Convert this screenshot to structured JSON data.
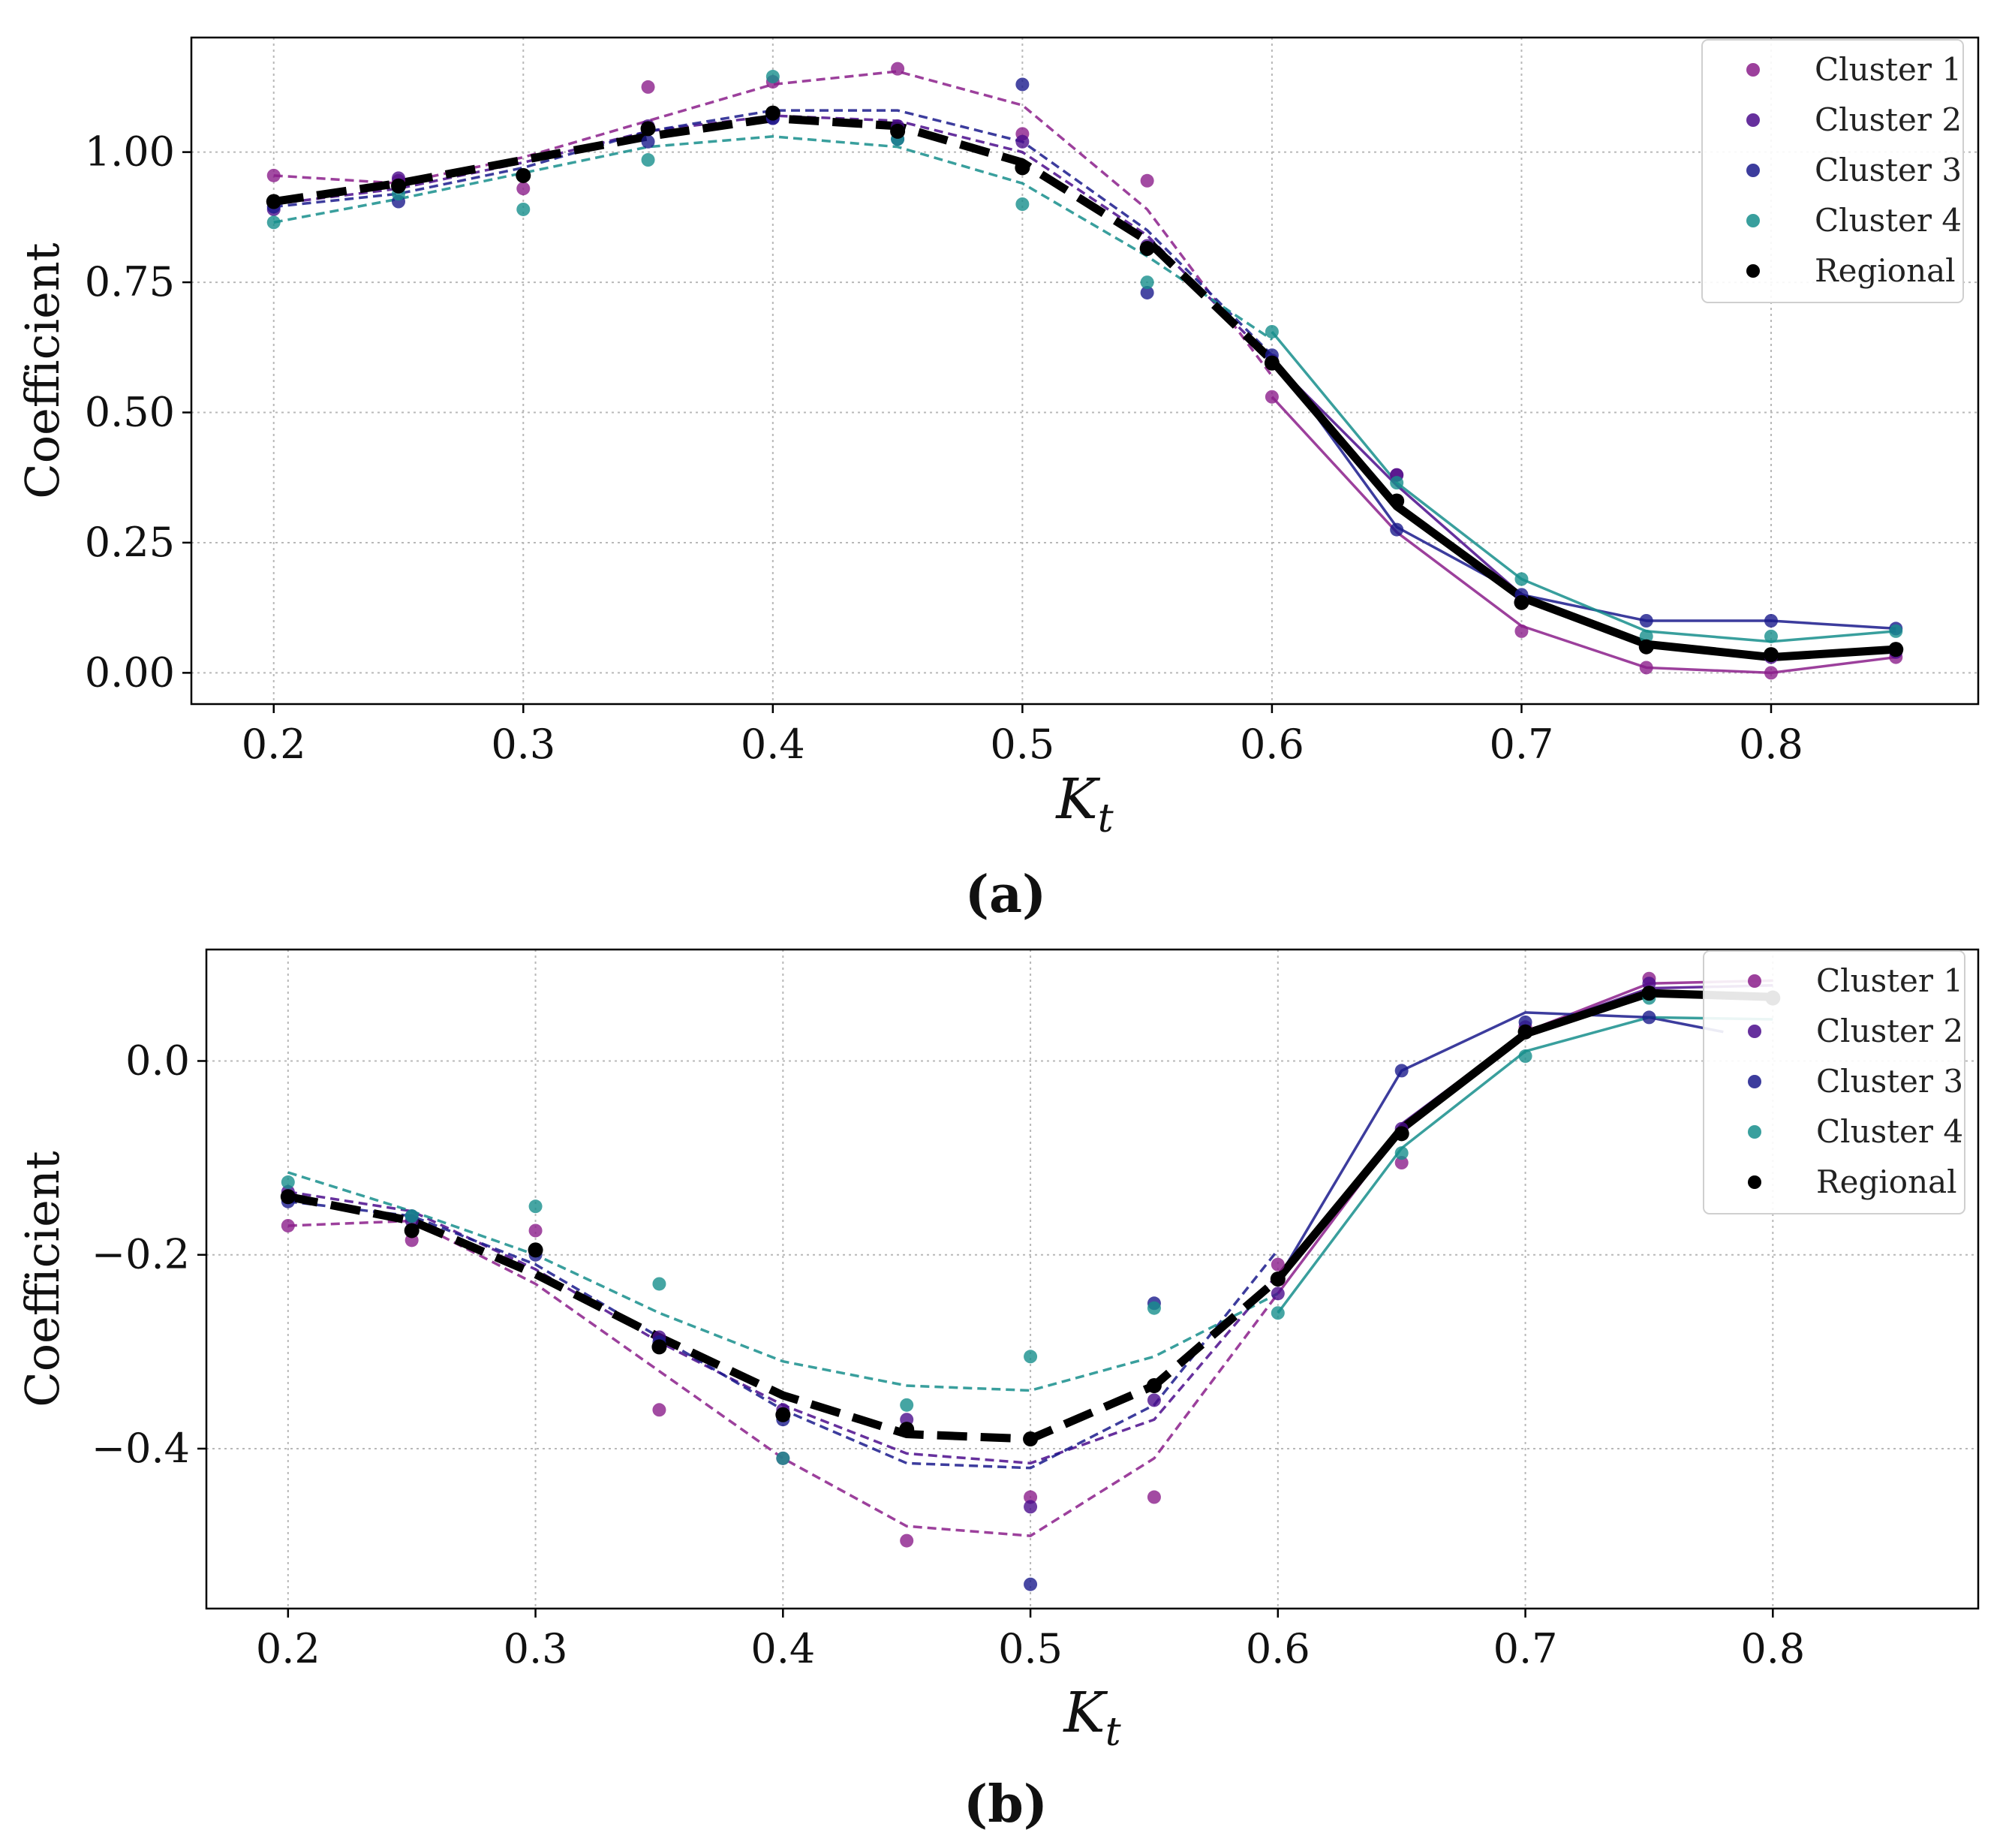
{
  "chart_data": [
    {
      "type": "line",
      "panel_label": "(a)",
      "title": "",
      "xlabel": "K",
      "xlabel_sub": "t",
      "ylabel": "Coefficient",
      "xlim": [
        0.167,
        0.883
      ],
      "ylim": [
        -0.06,
        1.22
      ],
      "xticks": [
        0.2,
        0.3,
        0.4,
        0.5,
        0.6,
        0.7,
        0.8
      ],
      "xtick_labels": [
        "0.2",
        "0.3",
        "0.4",
        "0.5",
        "0.6",
        "0.7",
        "0.8"
      ],
      "yticks": [
        0.0,
        0.25,
        0.5,
        0.75,
        1.0
      ],
      "ytick_labels": [
        "0.00",
        "0.25",
        "0.50",
        "0.75",
        "1.00"
      ],
      "grid": true,
      "legend_position": "top-right",
      "series": [
        {
          "name": "Cluster 1",
          "color": "#8B1E8B",
          "x": [
            0.2,
            0.25,
            0.3,
            0.35,
            0.4,
            0.45,
            0.5,
            0.55,
            0.6,
            0.65,
            0.7,
            0.75,
            0.8,
            0.85
          ],
          "points": [
            0.955,
            0.945,
            0.93,
            1.125,
            1.135,
            1.16,
            1.035,
            0.945,
            0.53,
            0.38,
            0.08,
            0.01,
            0.0,
            0.03
          ],
          "dashed_fit": {
            "x": [
              0.2,
              0.25,
              0.3,
              0.35,
              0.4,
              0.45,
              0.5,
              0.55,
              0.6
            ],
            "y": [
              0.955,
              0.94,
              0.99,
              1.06,
              1.13,
              1.155,
              1.09,
              0.89,
              0.57
            ]
          },
          "solid_fit": {
            "x": [
              0.6,
              0.65,
              0.7,
              0.75,
              0.8,
              0.85
            ],
            "y": [
              0.53,
              0.27,
              0.09,
              0.01,
              0.0,
              0.03
            ]
          }
        },
        {
          "name": "Cluster 2",
          "color": "#4B0C8C",
          "x": [
            0.2,
            0.25,
            0.3,
            0.35,
            0.4,
            0.45,
            0.5,
            0.55,
            0.6,
            0.65,
            0.7,
            0.75,
            0.8,
            0.85
          ],
          "points": [
            0.89,
            0.95,
            0.955,
            1.05,
            1.065,
            1.05,
            1.02,
            0.82,
            0.6,
            0.38,
            0.14,
            0.05,
            0.03,
            0.04
          ],
          "dashed_fit": {
            "x": [
              0.2,
              0.25,
              0.3,
              0.35,
              0.4,
              0.45,
              0.5,
              0.55,
              0.6
            ],
            "y": [
              0.9,
              0.93,
              0.98,
              1.04,
              1.07,
              1.06,
              1.0,
              0.84,
              0.6
            ]
          },
          "solid_fit": {
            "x": [
              0.6,
              0.65,
              0.7,
              0.75,
              0.8,
              0.85
            ],
            "y": [
              0.6,
              0.36,
              0.15,
              0.05,
              0.03,
              0.04
            ]
          }
        },
        {
          "name": "Cluster 3",
          "color": "#1A1A8C",
          "x": [
            0.2,
            0.25,
            0.3,
            0.35,
            0.4,
            0.45,
            0.5,
            0.55,
            0.6,
            0.65,
            0.7,
            0.75,
            0.8,
            0.85
          ],
          "points": [
            0.895,
            0.905,
            0.955,
            1.02,
            1.065,
            1.025,
            1.13,
            0.73,
            0.61,
            0.275,
            0.15,
            0.1,
            0.1,
            0.085
          ],
          "dashed_fit": {
            "x": [
              0.2,
              0.25,
              0.3,
              0.35,
              0.4,
              0.45,
              0.5,
              0.55,
              0.6
            ],
            "y": [
              0.895,
              0.92,
              0.97,
              1.04,
              1.08,
              1.08,
              1.02,
              0.85,
              0.61
            ]
          },
          "solid_fit": {
            "x": [
              0.6,
              0.65,
              0.7,
              0.75,
              0.8,
              0.85
            ],
            "y": [
              0.61,
              0.28,
              0.15,
              0.1,
              0.1,
              0.085
            ]
          }
        },
        {
          "name": "Cluster 4",
          "color": "#168E8C",
          "x": [
            0.2,
            0.25,
            0.3,
            0.35,
            0.4,
            0.45,
            0.5,
            0.55,
            0.6,
            0.65,
            0.7,
            0.75,
            0.8,
            0.85
          ],
          "points": [
            0.865,
            0.92,
            0.89,
            0.985,
            1.145,
            1.025,
            0.9,
            0.75,
            0.655,
            0.365,
            0.18,
            0.07,
            0.07,
            0.08
          ],
          "dashed_fit": {
            "x": [
              0.2,
              0.25,
              0.3,
              0.35,
              0.4,
              0.45,
              0.5,
              0.55,
              0.6
            ],
            "y": [
              0.865,
              0.91,
              0.96,
              1.01,
              1.03,
              1.01,
              0.94,
              0.8,
              0.64
            ]
          },
          "solid_fit": {
            "x": [
              0.6,
              0.65,
              0.7,
              0.75,
              0.8,
              0.85
            ],
            "y": [
              0.655,
              0.365,
              0.18,
              0.08,
              0.06,
              0.08
            ]
          }
        },
        {
          "name": "Regional",
          "color": "#000000",
          "x": [
            0.2,
            0.25,
            0.3,
            0.35,
            0.4,
            0.45,
            0.5,
            0.55,
            0.6,
            0.65,
            0.7,
            0.75,
            0.8,
            0.85
          ],
          "points": [
            0.905,
            0.935,
            0.955,
            1.045,
            1.075,
            1.04,
            0.97,
            0.815,
            0.595,
            0.33,
            0.135,
            0.05,
            0.035,
            0.045
          ],
          "dashed_fit": {
            "x": [
              0.2,
              0.25,
              0.3,
              0.35,
              0.4,
              0.45,
              0.5,
              0.55,
              0.6
            ],
            "y": [
              0.905,
              0.94,
              0.985,
              1.03,
              1.065,
              1.05,
              0.98,
              0.83,
              0.6
            ]
          },
          "solid_fit": {
            "x": [
              0.6,
              0.65,
              0.7,
              0.75,
              0.8,
              0.85
            ],
            "y": [
              0.6,
              0.32,
              0.145,
              0.055,
              0.03,
              0.045
            ]
          }
        }
      ]
    },
    {
      "type": "line",
      "panel_label": "(b)",
      "title": "",
      "xlabel": "K",
      "xlabel_sub": "t",
      "ylabel": "Coefficient",
      "xlim": [
        0.167,
        0.883
      ],
      "ylim": [
        -0.565,
        0.115
      ],
      "xticks": [
        0.2,
        0.3,
        0.4,
        0.5,
        0.6,
        0.7,
        0.8
      ],
      "xtick_labels": [
        "0.2",
        "0.3",
        "0.4",
        "0.5",
        "0.6",
        "0.7",
        "0.8"
      ],
      "yticks": [
        -0.4,
        -0.2,
        0.0
      ],
      "ytick_labels": [
        "−0.4",
        "−0.2",
        "0.0"
      ],
      "grid": true,
      "legend_position": "top-right",
      "series": [
        {
          "name": "Cluster 1",
          "color": "#8B1E8B",
          "x": [
            0.2,
            0.25,
            0.3,
            0.35,
            0.4,
            0.45,
            0.5,
            0.55,
            0.6,
            0.65,
            0.7,
            0.75
          ],
          "points": [
            -0.17,
            -0.185,
            -0.175,
            -0.36,
            -0.41,
            -0.495,
            -0.45,
            -0.45,
            -0.21,
            -0.105,
            0.035,
            0.085
          ],
          "dashed_fit": {
            "x": [
              0.2,
              0.25,
              0.3,
              0.35,
              0.4,
              0.45,
              0.5,
              0.55,
              0.6
            ],
            "y": [
              -0.17,
              -0.165,
              -0.23,
              -0.32,
              -0.41,
              -0.48,
              -0.49,
              -0.41,
              -0.24
            ]
          },
          "solid_fit": {
            "x": [
              0.6,
              0.65,
              0.7,
              0.75,
              0.8
            ],
            "y": [
              -0.24,
              -0.07,
              0.03,
              0.08,
              0.083
            ]
          }
        },
        {
          "name": "Cluster 2",
          "color": "#4B0C8C",
          "x": [
            0.2,
            0.25,
            0.3,
            0.35,
            0.4,
            0.45,
            0.5,
            0.55,
            0.6,
            0.65,
            0.7,
            0.75
          ],
          "points": [
            -0.135,
            -0.165,
            -0.195,
            -0.285,
            -0.36,
            -0.37,
            -0.46,
            -0.35,
            -0.24,
            -0.07,
            0.03,
            0.08
          ],
          "dashed_fit": {
            "x": [
              0.2,
              0.25,
              0.3,
              0.35,
              0.4,
              0.45,
              0.5,
              0.55,
              0.6
            ],
            "y": [
              -0.135,
              -0.155,
              -0.215,
              -0.29,
              -0.355,
              -0.405,
              -0.415,
              -0.37,
              -0.22
            ]
          },
          "solid_fit": {
            "x": [
              0.6,
              0.65,
              0.7,
              0.75,
              0.8
            ],
            "y": [
              -0.23,
              -0.065,
              0.03,
              0.075,
              0.078
            ]
          }
        },
        {
          "name": "Cluster 3",
          "color": "#1A1A8C",
          "x": [
            0.2,
            0.25,
            0.3,
            0.35,
            0.4,
            0.45,
            0.5,
            0.55,
            0.6,
            0.65,
            0.7,
            0.75
          ],
          "points": [
            -0.145,
            -0.16,
            -0.2,
            -0.29,
            -0.37,
            -0.38,
            -0.54,
            -0.25,
            -0.225,
            -0.01,
            0.04,
            0.045
          ],
          "dashed_fit": {
            "x": [
              0.2,
              0.25,
              0.3,
              0.35,
              0.4,
              0.45,
              0.5,
              0.55,
              0.6
            ],
            "y": [
              -0.145,
              -0.16,
              -0.21,
              -0.285,
              -0.36,
              -0.415,
              -0.42,
              -0.355,
              -0.195
            ]
          },
          "solid_fit": {
            "x": [
              0.6,
              0.65,
              0.7,
              0.75,
              0.78
            ],
            "y": [
              -0.225,
              -0.01,
              0.05,
              0.045,
              0.03
            ]
          }
        },
        {
          "name": "Cluster 4",
          "color": "#168E8C",
          "x": [
            0.2,
            0.25,
            0.3,
            0.35,
            0.4,
            0.45,
            0.5,
            0.55,
            0.6,
            0.65,
            0.7,
            0.75
          ],
          "points": [
            -0.125,
            -0.16,
            -0.15,
            -0.23,
            -0.41,
            -0.355,
            -0.305,
            -0.255,
            -0.26,
            -0.095,
            0.005,
            0.065
          ],
          "dashed_fit": {
            "x": [
              0.2,
              0.25,
              0.3,
              0.35,
              0.4,
              0.45,
              0.5,
              0.55,
              0.6
            ],
            "y": [
              -0.115,
              -0.155,
              -0.2,
              -0.26,
              -0.31,
              -0.335,
              -0.34,
              -0.305,
              -0.24
            ]
          },
          "solid_fit": {
            "x": [
              0.6,
              0.65,
              0.7,
              0.75,
              0.8
            ],
            "y": [
              -0.26,
              -0.09,
              0.01,
              0.045,
              0.043
            ]
          }
        },
        {
          "name": "Regional",
          "color": "#000000",
          "x": [
            0.2,
            0.25,
            0.3,
            0.35,
            0.4,
            0.45,
            0.5,
            0.55,
            0.6,
            0.65,
            0.7,
            0.75,
            0.8
          ],
          "points": [
            -0.14,
            -0.175,
            -0.195,
            -0.295,
            -0.365,
            -0.38,
            -0.39,
            -0.335,
            -0.225,
            -0.075,
            0.03,
            0.07,
            0.065
          ],
          "dashed_fit": {
            "x": [
              0.2,
              0.25,
              0.3,
              0.35,
              0.4,
              0.45,
              0.5,
              0.55,
              0.6
            ],
            "y": [
              -0.14,
              -0.165,
              -0.22,
              -0.285,
              -0.345,
              -0.385,
              -0.39,
              -0.335,
              -0.225
            ]
          },
          "solid_fit": {
            "x": [
              0.6,
              0.65,
              0.7,
              0.75,
              0.8
            ],
            "y": [
              -0.225,
              -0.07,
              0.028,
              0.07,
              0.066
            ]
          }
        }
      ]
    }
  ]
}
